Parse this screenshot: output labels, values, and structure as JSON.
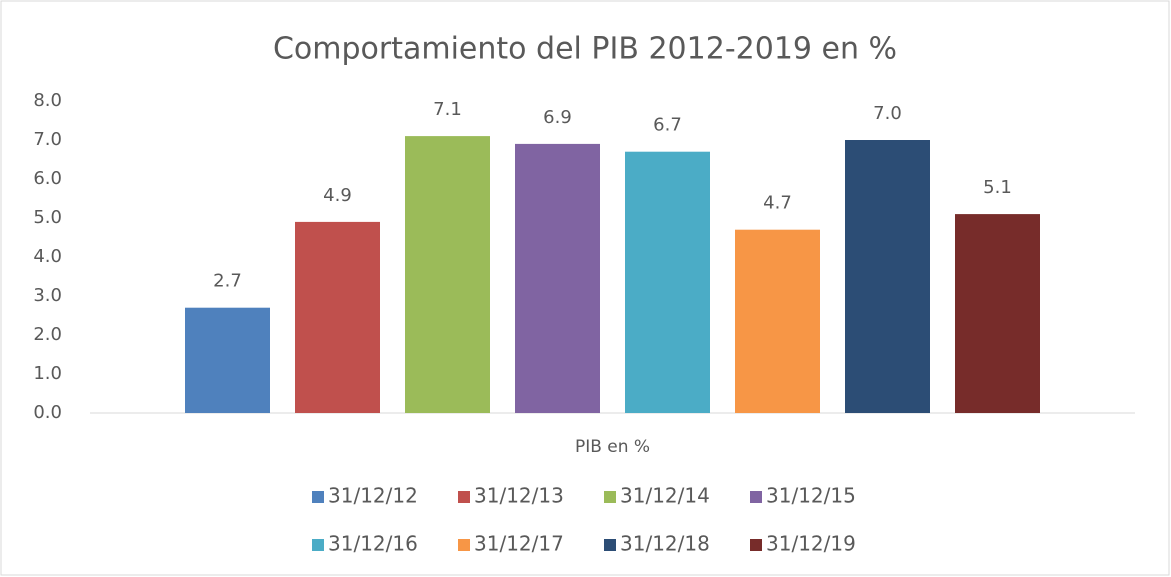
{
  "chart_data": {
    "type": "bar",
    "title": "Comportamiento del PIB 2012-2019 en %",
    "categories": [
      "PIB en %"
    ],
    "series": [
      {
        "name": "31/12/12",
        "color": "#4f81bd",
        "values": [
          2.7
        ],
        "value_labels": [
          "2.7"
        ]
      },
      {
        "name": "31/12/13",
        "color": "#c0504d",
        "values": [
          4.9
        ],
        "value_labels": [
          "4.9"
        ]
      },
      {
        "name": "31/12/14",
        "color": "#9bbb59",
        "values": [
          7.1
        ],
        "value_labels": [
          "7.1"
        ]
      },
      {
        "name": "31/12/15",
        "color": "#8064a2",
        "values": [
          6.9
        ],
        "value_labels": [
          "6.9"
        ]
      },
      {
        "name": "31/12/16",
        "color": "#4bacc6",
        "values": [
          6.7
        ],
        "value_labels": [
          "6.7"
        ]
      },
      {
        "name": "31/12/17",
        "color": "#f79646",
        "values": [
          4.7
        ],
        "value_labels": [
          "4.7"
        ]
      },
      {
        "name": "31/12/18",
        "color": "#2c4d75",
        "values": [
          7.0
        ],
        "value_labels": [
          "7.0"
        ]
      },
      {
        "name": "31/12/19",
        "color": "#772c2a",
        "values": [
          5.1
        ],
        "value_labels": [
          "5.1"
        ]
      }
    ],
    "ylim": [
      0,
      8
    ],
    "yticks": [
      {
        "value": 0,
        "label": "0.0"
      },
      {
        "value": 1,
        "label": "1.0"
      },
      {
        "value": 2,
        "label": "2.0"
      },
      {
        "value": 3,
        "label": "3.0"
      },
      {
        "value": 4,
        "label": "4.0"
      },
      {
        "value": 5,
        "label": "5.0"
      },
      {
        "value": 6,
        "label": "6.0"
      },
      {
        "value": 7,
        "label": "7.0"
      },
      {
        "value": 8,
        "label": "8.0"
      }
    ],
    "grid": false,
    "legend": "bottom"
  }
}
